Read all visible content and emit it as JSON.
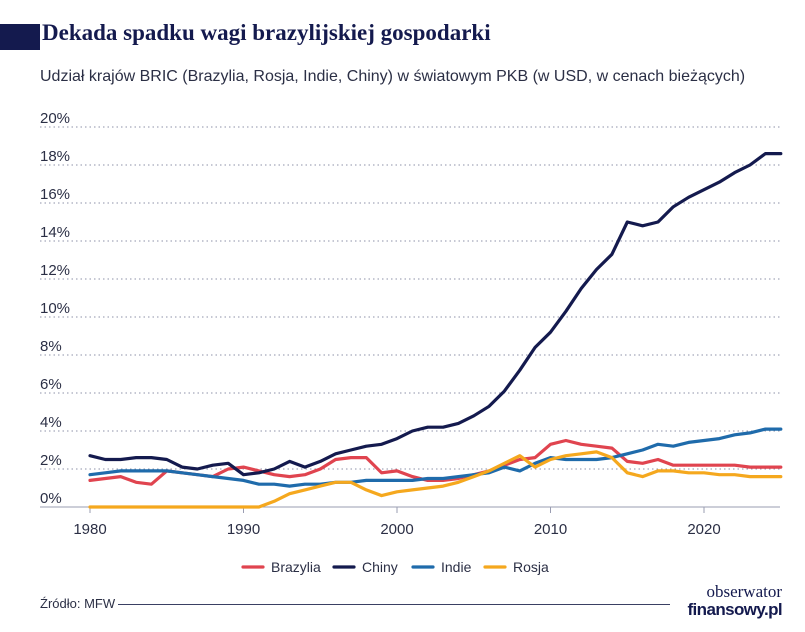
{
  "header": {
    "title": "Dekada spadku wagi brazylijskiej gospodarki",
    "subtitle": "Udział krajów BRIC (Brazylia, Rosja, Indie, Chiny) w światowym PKB (w USD, w cenach bieżących)"
  },
  "footer": {
    "source": "Źródło: MFW",
    "logo_top": "obserwator",
    "logo_bottom": "finansowy.pl"
  },
  "chart_data": {
    "type": "line",
    "title": "Dekada spadku wagi brazylijskiej gospodarki",
    "subtitle": "Udział krajów BRIC (Brazylia, Rosja, Indie, Chiny) w światowym PKB (w USD, w cenach bieżących)",
    "xlabel": "",
    "ylabel": "",
    "xlim": [
      1980,
      2025
    ],
    "ylim": [
      0,
      20
    ],
    "x_ticks": [
      1980,
      1990,
      2000,
      2010,
      2020
    ],
    "y_ticks": [
      "0%",
      "2%",
      "4%",
      "6%",
      "8%",
      "10%",
      "12%",
      "14%",
      "16%",
      "18%",
      "20%"
    ],
    "grid": "horizontal dotted",
    "legend_position": "bottom",
    "x": [
      1980,
      1981,
      1982,
      1983,
      1984,
      1985,
      1986,
      1987,
      1988,
      1989,
      1990,
      1991,
      1992,
      1993,
      1994,
      1995,
      1996,
      1997,
      1998,
      1999,
      2000,
      2001,
      2002,
      2003,
      2004,
      2005,
      2006,
      2007,
      2008,
      2009,
      2010,
      2011,
      2012,
      2013,
      2014,
      2015,
      2016,
      2017,
      2018,
      2019,
      2020,
      2021,
      2022,
      2023,
      2024,
      2025
    ],
    "series": [
      {
        "name": "Brazylia",
        "color": "#e0444f",
        "values": [
          1.4,
          1.5,
          1.6,
          1.3,
          1.2,
          1.9,
          1.8,
          1.7,
          1.6,
          2.0,
          2.1,
          1.9,
          1.7,
          1.6,
          1.7,
          2.0,
          2.5,
          2.6,
          2.6,
          1.8,
          1.9,
          1.6,
          1.4,
          1.4,
          1.5,
          1.7,
          1.9,
          2.2,
          2.5,
          2.6,
          3.3,
          3.5,
          3.3,
          3.2,
          3.1,
          2.4,
          2.3,
          2.5,
          2.2,
          2.2,
          2.2,
          2.2,
          2.2,
          2.1,
          2.1,
          2.1
        ]
      },
      {
        "name": "Chiny",
        "color": "#141a4e",
        "values": [
          2.7,
          2.5,
          2.5,
          2.6,
          2.6,
          2.5,
          2.1,
          2.0,
          2.2,
          2.3,
          1.7,
          1.8,
          2.0,
          2.4,
          2.1,
          2.4,
          2.8,
          3.0,
          3.2,
          3.3,
          3.6,
          4.0,
          4.2,
          4.2,
          4.4,
          4.8,
          5.3,
          6.1,
          7.2,
          8.4,
          9.2,
          10.3,
          11.5,
          12.5,
          13.3,
          15.0,
          14.8,
          15.0,
          15.8,
          16.3,
          16.7,
          17.1,
          17.6,
          18.0,
          18.6,
          18.6
        ]
      },
      {
        "name": "Indie",
        "color": "#1f6bab",
        "values": [
          1.7,
          1.8,
          1.9,
          1.9,
          1.9,
          1.9,
          1.8,
          1.7,
          1.6,
          1.5,
          1.4,
          1.2,
          1.2,
          1.1,
          1.2,
          1.2,
          1.3,
          1.3,
          1.4,
          1.4,
          1.4,
          1.4,
          1.5,
          1.5,
          1.6,
          1.7,
          1.8,
          2.1,
          1.9,
          2.3,
          2.6,
          2.5,
          2.5,
          2.5,
          2.6,
          2.8,
          3.0,
          3.3,
          3.2,
          3.4,
          3.5,
          3.6,
          3.8,
          3.9,
          4.1,
          4.1
        ]
      },
      {
        "name": "Rosja",
        "color": "#f5a81e",
        "values": [
          0,
          0,
          0,
          0,
          0,
          0,
          0,
          0,
          0,
          0,
          0,
          0,
          0.3,
          0.7,
          0.9,
          1.1,
          1.3,
          1.3,
          0.9,
          0.6,
          0.8,
          0.9,
          1.0,
          1.1,
          1.3,
          1.6,
          1.9,
          2.3,
          2.7,
          2.1,
          2.5,
          2.7,
          2.8,
          2.9,
          2.6,
          1.8,
          1.6,
          1.9,
          1.9,
          1.8,
          1.8,
          1.7,
          1.7,
          1.6,
          1.6,
          1.6
        ]
      }
    ]
  }
}
